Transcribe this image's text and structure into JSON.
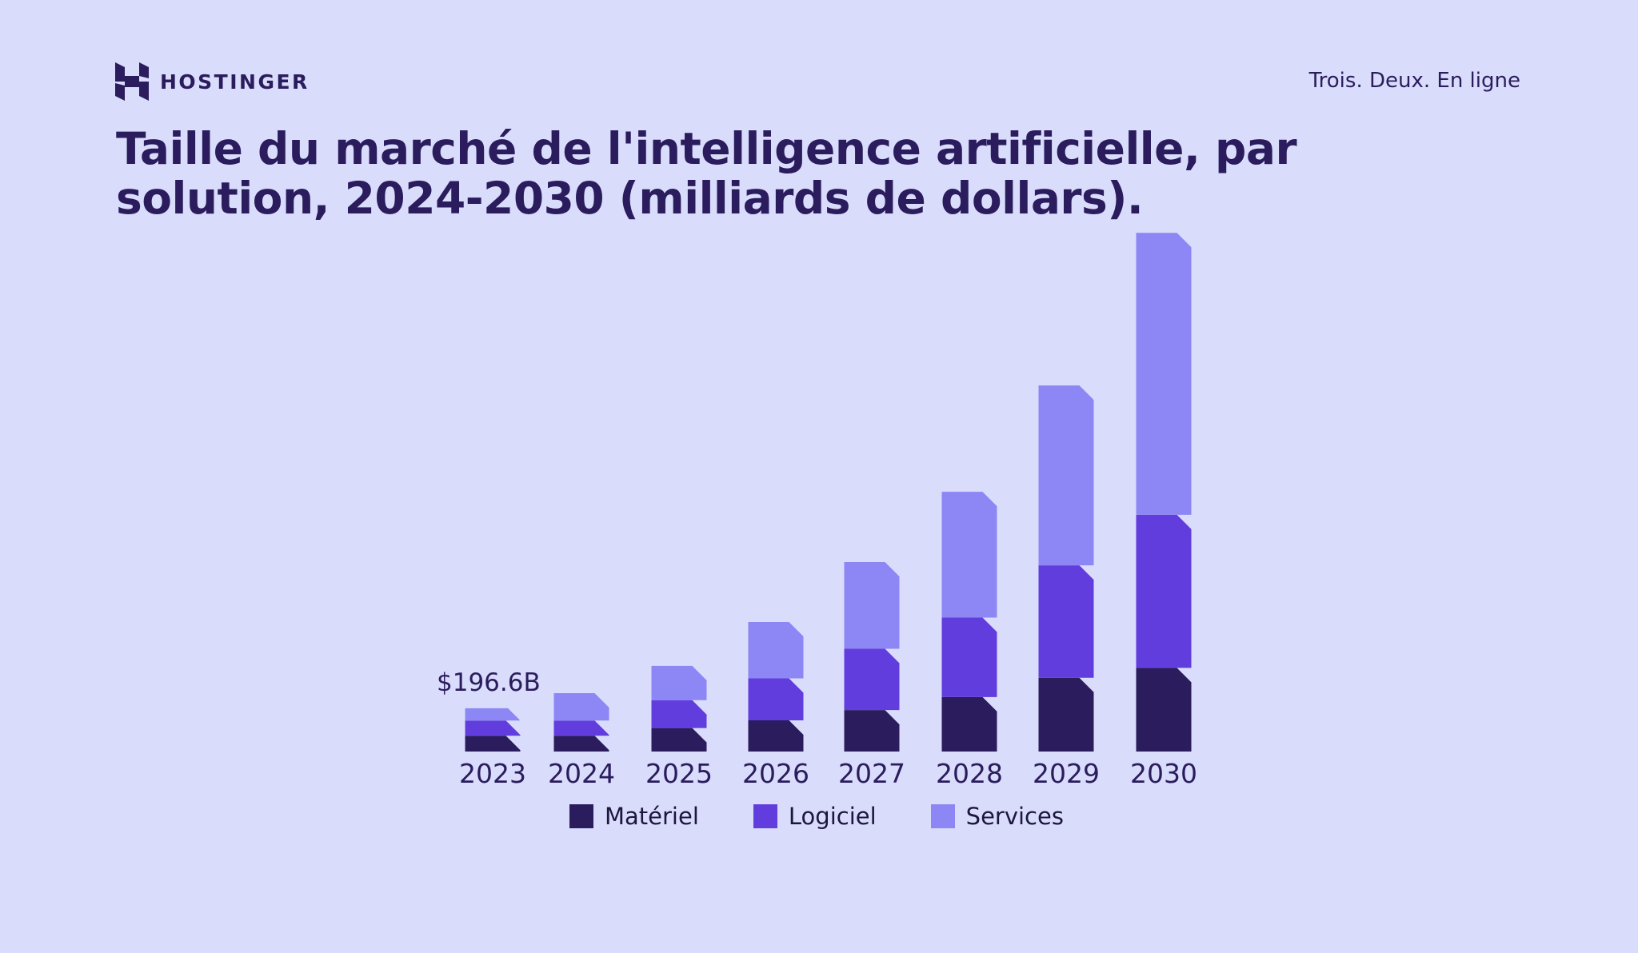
{
  "header": {
    "brand": "HOSTINGER",
    "logo_icon": "hostinger-h-icon",
    "tagline": "Trois. Deux. En ligne"
  },
  "title": "Taille du marché de l'intelligence artificielle, par solution, 2024-2030 (milliards de dollars).",
  "annotation": "$196.6B",
  "colors": {
    "background": "#d9ddfb",
    "materiel": "#2b1c5e",
    "logiciel": "#623ddd",
    "services": "#8d87f5",
    "text": "#2b1c5e"
  },
  "legend": [
    {
      "label": "Matériel",
      "color": "#2b1c5e"
    },
    {
      "label": "Logiciel",
      "color": "#623ddd"
    },
    {
      "label": "Services",
      "color": "#8d87f5"
    }
  ],
  "chart_data": {
    "type": "bar",
    "stacked": true,
    "title": "Taille du marché de l'intelligence artificielle, par solution, 2024-2030 (milliards de dollars).",
    "xlabel": "",
    "ylabel": "",
    "categories": [
      "2023",
      "2024",
      "2025",
      "2026",
      "2027",
      "2028",
      "2029",
      "2030"
    ],
    "series": [
      {
        "name": "Matériel",
        "values": [
          72,
          72,
          107,
          142,
          189,
          248,
          336,
          381
        ]
      },
      {
        "name": "Logiciel",
        "values": [
          69,
          69,
          127,
          191,
          279,
          362,
          512,
          697
        ]
      },
      {
        "name": "Services",
        "values": [
          56,
          125,
          156,
          257,
          395,
          573,
          819,
          1284
        ]
      }
    ],
    "totals": [
      196.6,
      266,
      390,
      590,
      863,
      1183,
      1667,
      2362
    ],
    "annotations": [
      {
        "category": "2023",
        "text": "$196.6B"
      }
    ],
    "legend_position": "bottom",
    "grid": false,
    "axes_visible": false
  }
}
